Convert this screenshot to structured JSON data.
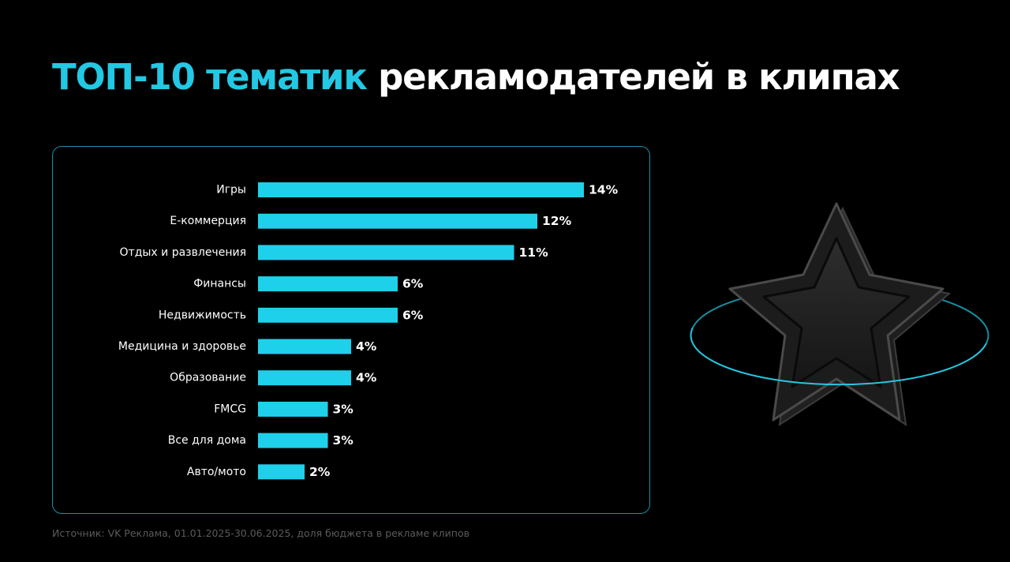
{
  "header": {
    "title_accent": "ТОП-10 тематик",
    "title_main": "рекламодателей в клипах"
  },
  "footer": {
    "source": "Источник: VK Реклама, 01.01.2025-30.06.2025, доля бюджета в рекламе клипов"
  },
  "colors": {
    "background": "#000000",
    "accent": "#22c8e4",
    "bar": "#1fd0ea",
    "panel_border": "#1b8fa3",
    "label_text": "#ffffff",
    "source_text": "#5b5b5b"
  },
  "decoration": {
    "icon": "star-icon",
    "ring": "orbit-ring"
  },
  "chart_data": {
    "type": "bar",
    "orientation": "horizontal",
    "title": "",
    "xlabel": "",
    "ylabel": "",
    "grid": false,
    "categories": [
      "Игры",
      "E-коммерция",
      "Отдых и развлечения",
      "Финансы",
      "Недвижимость",
      "Медицина и здоровье",
      "Образование",
      "FMCG",
      "Все для дома",
      "Авто/мото"
    ],
    "values": [
      14,
      12,
      11,
      6,
      6,
      4,
      4,
      3,
      3,
      2
    ],
    "value_labels": [
      "14%",
      "12%",
      "11%",
      "6%",
      "6%",
      "4%",
      "4%",
      "3%",
      "3%",
      "2%"
    ],
    "unit": "%"
  }
}
